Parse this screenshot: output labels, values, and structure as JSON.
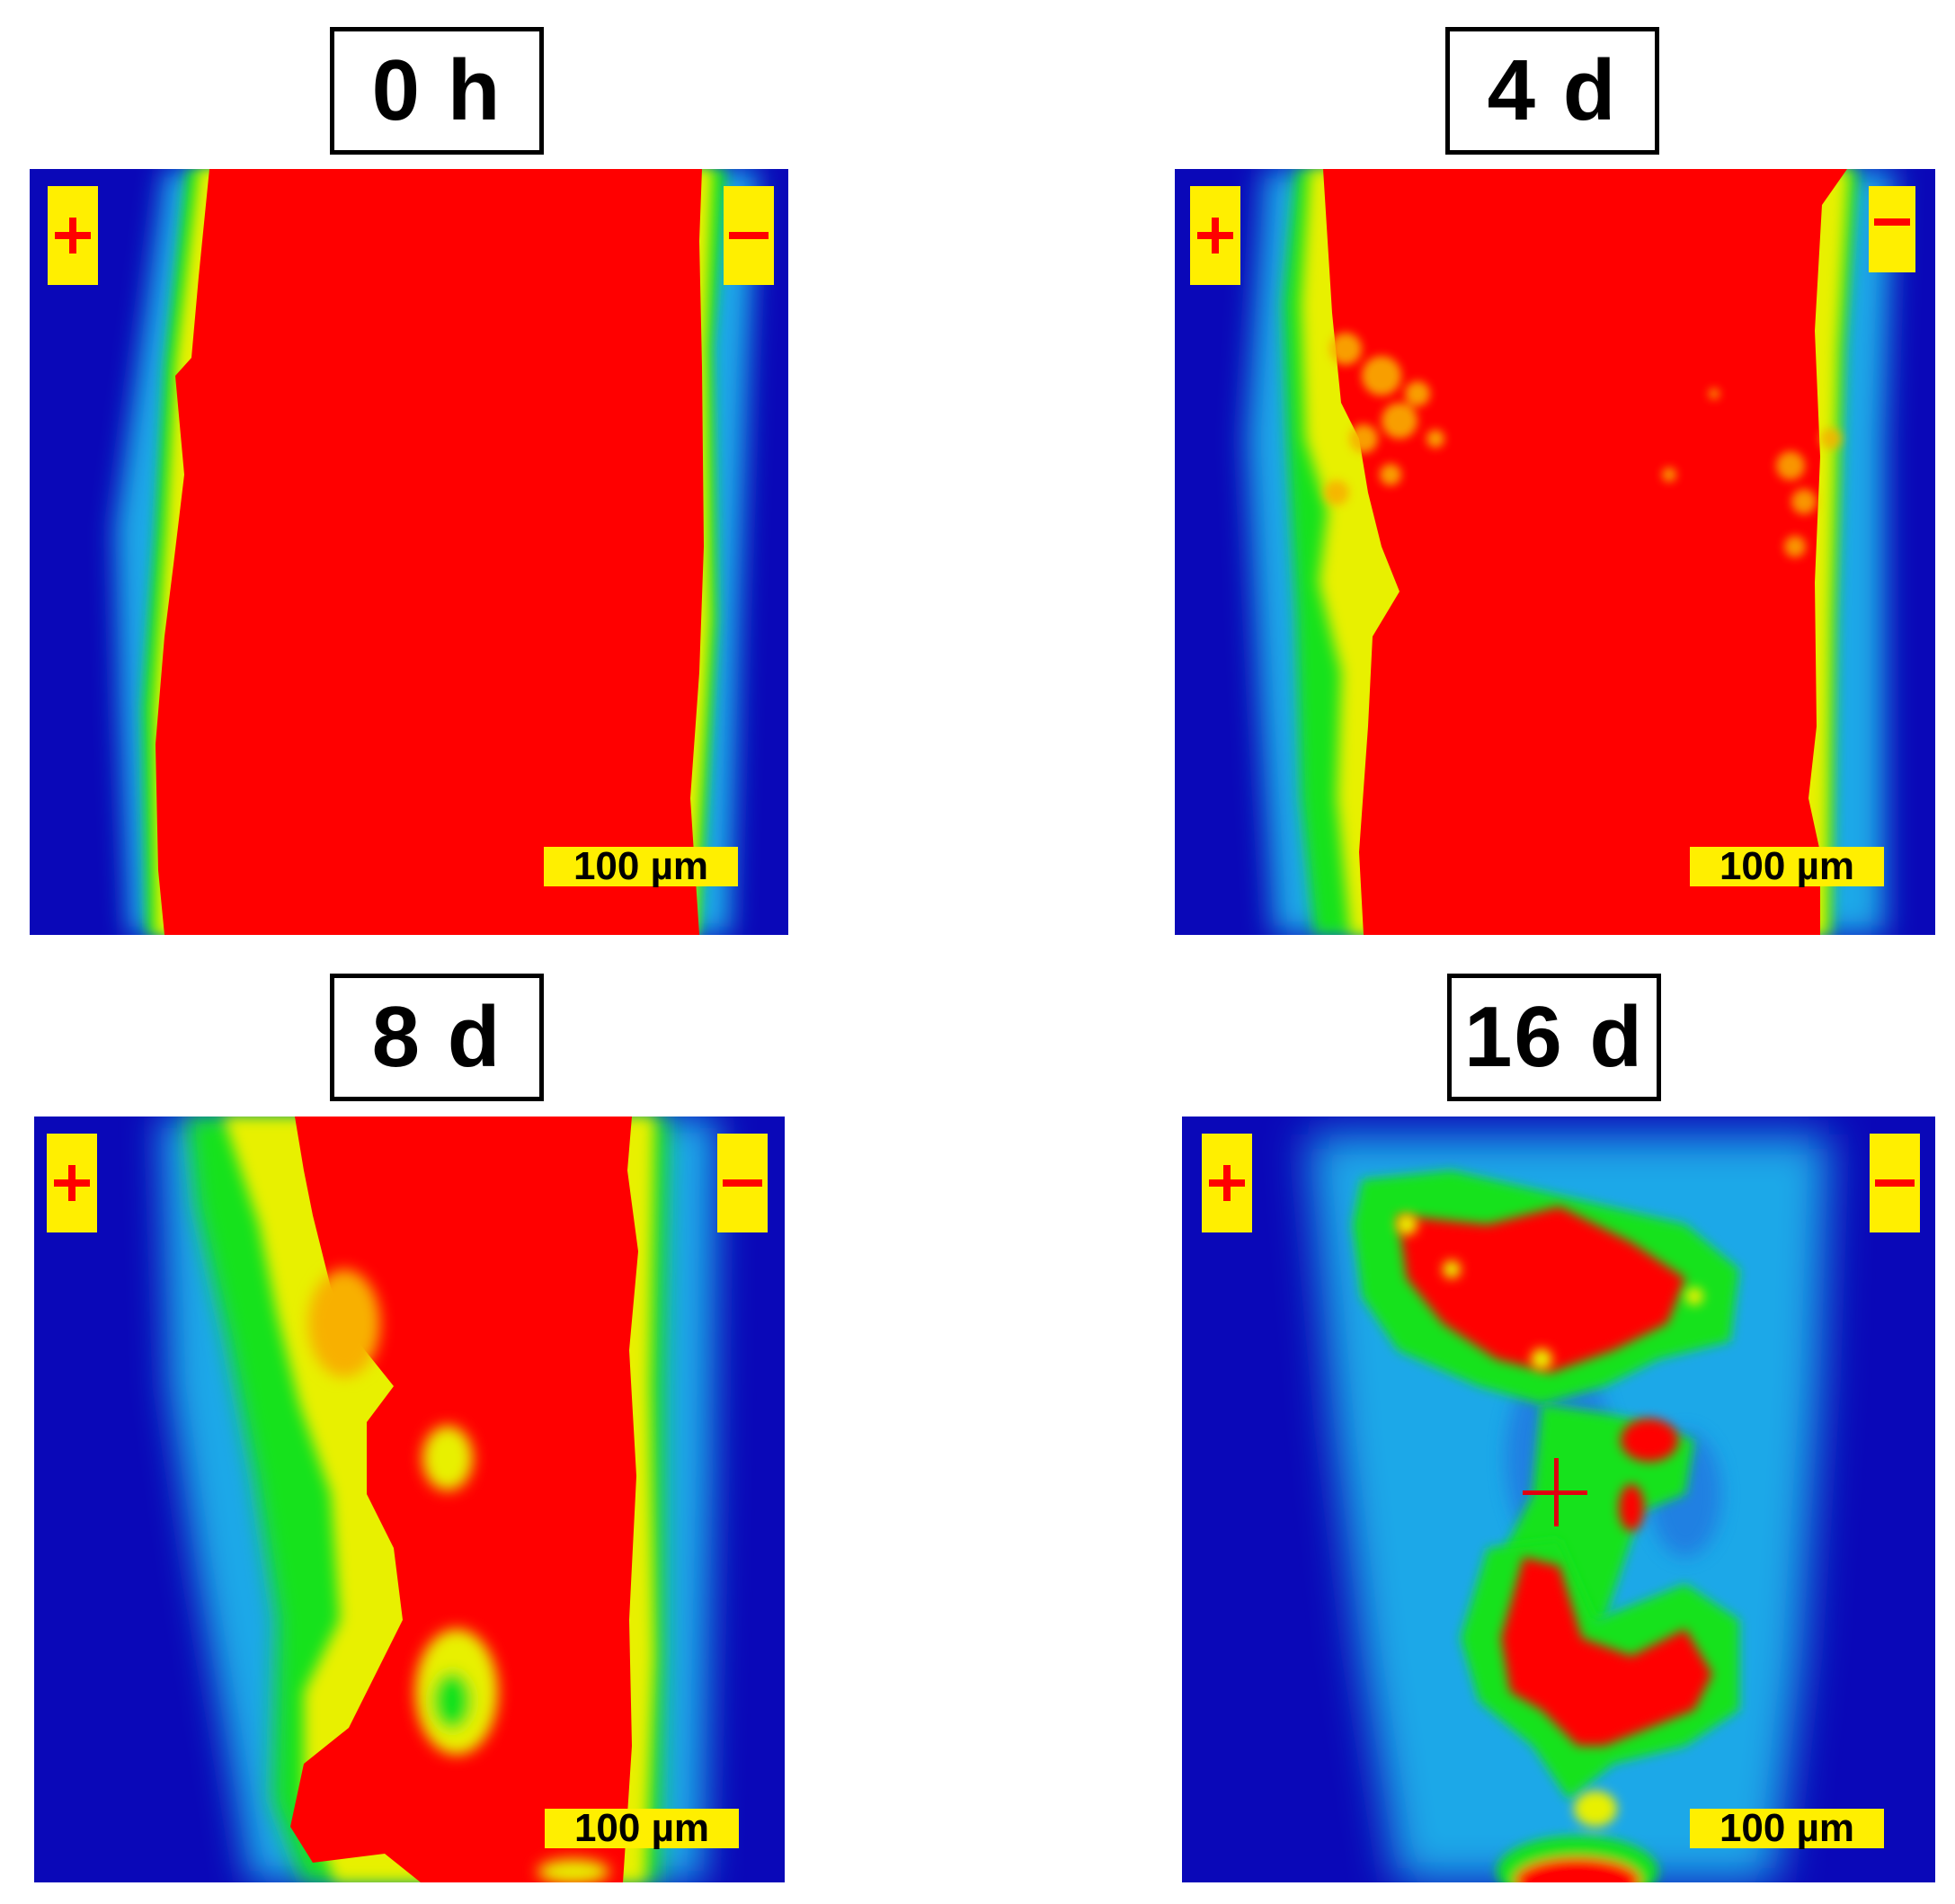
{
  "panels": [
    {
      "title": "0 h",
      "plus_icon": "plus-sign-icon",
      "minus_icon": "minus-sign-icon",
      "scale_bar": "100 µm"
    },
    {
      "title": "4 d",
      "plus_icon": "plus-sign-icon",
      "minus_icon": "minus-sign-icon",
      "scale_bar": "100 µm"
    },
    {
      "title": "8 d",
      "plus_icon": "plus-sign-icon",
      "minus_icon": "minus-sign-icon",
      "scale_bar": "100 µm"
    },
    {
      "title": "16 d",
      "plus_icon": "plus-sign-icon",
      "minus_icon": "minus-sign-icon",
      "scale_bar": "100 µm",
      "marker_icon": "crosshair-icon"
    }
  ],
  "colors": {
    "background_blue": "#0a08b8",
    "mid_cyan": "#1aa8e8",
    "mid_green": "#12e21a",
    "mid_yellow": "#e8f000",
    "high_red": "#ff0000",
    "label_yellow": "#ffef00"
  }
}
